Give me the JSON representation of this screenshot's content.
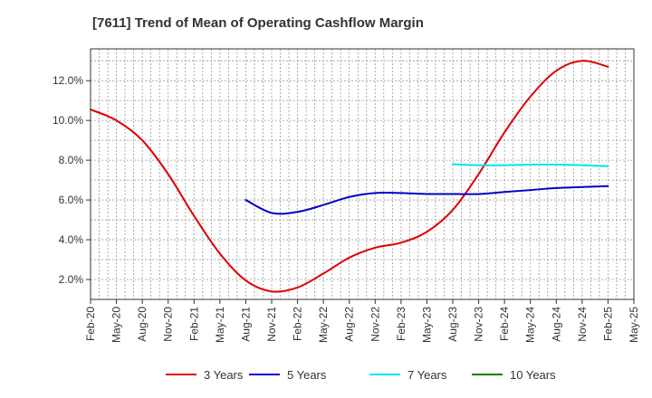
{
  "chart_data": {
    "type": "line",
    "title": "[7611]  Trend of Mean of Operating Cashflow Margin",
    "xlabel": "",
    "ylabel": "",
    "ylim": [
      1.0,
      13.6
    ],
    "yticks": [
      2.0,
      4.0,
      6.0,
      8.0,
      10.0,
      12.0
    ],
    "ytick_labels": [
      "2.0%",
      "4.0%",
      "6.0%",
      "8.0%",
      "10.0%",
      "12.0%"
    ],
    "x_tick_labels": [
      "Feb-20",
      "May-20",
      "Aug-20",
      "Nov-20",
      "Feb-21",
      "May-21",
      "Aug-21",
      "Nov-21",
      "Feb-22",
      "May-22",
      "Aug-22",
      "Nov-22",
      "Feb-23",
      "May-23",
      "Aug-23",
      "Nov-23",
      "Feb-24",
      "May-24",
      "Aug-24",
      "Nov-24",
      "Feb-25",
      "May-25"
    ],
    "grid": true,
    "legend_position": "bottom",
    "series": [
      {
        "name": "3 Years",
        "color": "#dd0000",
        "points": [
          [
            0,
            10.55
          ],
          [
            1,
            10.0
          ],
          [
            2,
            9.0
          ],
          [
            3,
            7.3
          ],
          [
            4,
            5.2
          ],
          [
            5,
            3.3
          ],
          [
            6,
            1.95
          ],
          [
            7,
            1.4
          ],
          [
            8,
            1.6
          ],
          [
            9,
            2.3
          ],
          [
            10,
            3.1
          ],
          [
            11,
            3.6
          ],
          [
            12,
            3.85
          ],
          [
            13,
            4.4
          ],
          [
            14,
            5.5
          ],
          [
            15,
            7.3
          ],
          [
            16,
            9.4
          ],
          [
            17,
            11.2
          ],
          [
            18,
            12.5
          ],
          [
            19,
            13.0
          ],
          [
            20,
            12.7
          ]
        ]
      },
      {
        "name": "5 Years",
        "color": "#0000cc",
        "points": [
          [
            6,
            6.0
          ],
          [
            7,
            5.35
          ],
          [
            8,
            5.4
          ],
          [
            9,
            5.75
          ],
          [
            10,
            6.15
          ],
          [
            11,
            6.35
          ],
          [
            12,
            6.35
          ],
          [
            13,
            6.3
          ],
          [
            14,
            6.3
          ],
          [
            15,
            6.3
          ],
          [
            16,
            6.4
          ],
          [
            17,
            6.5
          ],
          [
            18,
            6.6
          ],
          [
            19,
            6.65
          ],
          [
            20,
            6.7
          ]
        ]
      },
      {
        "name": "7 Years",
        "color": "#00e5ee",
        "points": [
          [
            14,
            7.8
          ],
          [
            15,
            7.75
          ],
          [
            16,
            7.75
          ],
          [
            17,
            7.78
          ],
          [
            18,
            7.78
          ],
          [
            19,
            7.75
          ],
          [
            20,
            7.7
          ]
        ]
      },
      {
        "name": "10 Years",
        "color": "#008000",
        "points": []
      }
    ]
  }
}
